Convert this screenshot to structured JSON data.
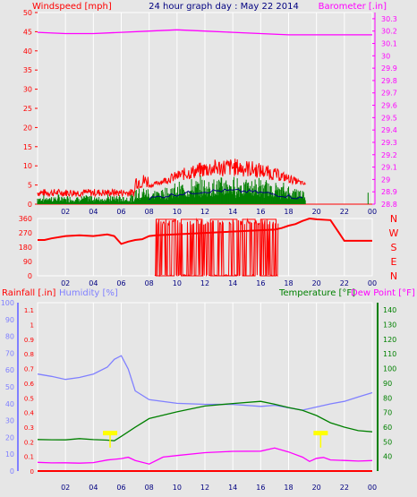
{
  "page": {
    "title": "24 hour graph day : May 22 2014",
    "colors": {
      "background": "#e6e6e6",
      "wind": "#ff0000",
      "wind_avg": "#000080",
      "wind_gust_fill": "#008000",
      "barometer": "#ff00ff",
      "direction": "#ff0000",
      "rainfall": "#ff0000",
      "humidity": "#8080ff",
      "temperature": "#008000",
      "dew_point": "#ff00ff",
      "sunshine_marker": "#ffff00"
    }
  },
  "chart_data": [
    {
      "type": "line",
      "name_top_left": "Windspeed [mph]",
      "name_top_right": "Barometer [.in]",
      "title": "24 hour graph day : May 22 2014",
      "x_ticks": [
        "02",
        "04",
        "06",
        "08",
        "10",
        "12",
        "14",
        "16",
        "18",
        "20",
        "22",
        "00"
      ],
      "y_left": {
        "label": "Windspeed [mph]",
        "ticks": [
          0,
          5,
          10,
          15,
          20,
          25,
          30,
          35,
          40,
          45,
          50
        ],
        "lim": [
          0,
          50
        ]
      },
      "y_right": {
        "label": "Barometer [.in]",
        "ticks": [
          28.8,
          28.9,
          29,
          29.1,
          29.2,
          29.3,
          29.4,
          29.5,
          29.6,
          29.7,
          29.8,
          29.9,
          30,
          30.1,
          30.2,
          30.3
        ],
        "lim": [
          28.8,
          30.35
        ]
      },
      "series": [
        {
          "name": "Barometer",
          "axis": "right",
          "x": [
            0,
            2,
            4,
            6,
            8,
            10,
            12,
            14,
            16,
            18,
            20,
            22,
            24
          ],
          "y": [
            30.19,
            30.18,
            30.18,
            30.19,
            30.2,
            30.21,
            30.2,
            30.19,
            30.18,
            30.17,
            30.17,
            30.17,
            30.17
          ]
        }
      ],
      "wind_activity": {
        "active_from_hour": 0,
        "active_to_hour": 19.2,
        "peak_mph": 12,
        "calm_after_hour": 19.5
      }
    },
    {
      "type": "line",
      "name": "Wind Direction",
      "y_left_ticks": [
        360,
        270,
        180,
        90,
        0
      ],
      "y_right_labels": [
        "N",
        "W",
        "S",
        "E",
        "N"
      ],
      "x_ticks": [
        "02",
        "04",
        "06",
        "08",
        "10",
        "12",
        "14",
        "16",
        "18",
        "20",
        "22",
        "00"
      ],
      "series": [
        {
          "name": "Direction",
          "x": [
            0,
            0.5,
            1,
            2,
            3,
            4,
            5,
            5.5,
            6,
            6.5,
            7,
            7.5,
            8,
            8.5,
            17,
            17.5,
            18,
            18.5,
            19,
            19.5,
            20,
            21,
            22,
            23,
            24
          ],
          "y": [
            225,
            225,
            235,
            250,
            255,
            250,
            260,
            250,
            200,
            215,
            225,
            230,
            250,
            255,
            290,
            300,
            315,
            325,
            345,
            360,
            355,
            350,
            220,
            220,
            220
          ]
        }
      ]
    },
    {
      "type": "line",
      "left_label_1": "Rainfall [.in]",
      "left_label_2": "Humidity [%]",
      "right_label_1": "Temperature [°F]",
      "right_label_2": "Dew Point [°F]",
      "x_ticks": [
        "02",
        "04",
        "06",
        "08",
        "10",
        "12",
        "14",
        "16",
        "18",
        "20",
        "22",
        "00"
      ],
      "y_humidity_ticks": [
        0,
        10,
        20,
        30,
        40,
        50,
        60,
        70,
        80,
        90,
        100
      ],
      "y_rain_ticks": [
        0,
        0.1,
        0.2,
        0.3,
        0.4,
        0.5,
        0.6,
        0.7,
        0.8,
        0.9,
        1,
        1.1
      ],
      "y_temp_ticks": [
        40,
        50,
        60,
        70,
        80,
        90,
        100,
        110,
        120,
        130,
        140
      ],
      "series": [
        {
          "name": "Humidity",
          "axis": "humidity",
          "x": [
            0,
            1,
            2,
            3,
            4,
            5,
            5.5,
            6,
            6.5,
            7,
            8,
            10,
            12,
            14,
            16,
            17,
            18,
            19,
            20,
            21,
            22,
            23,
            24
          ],
          "y": [
            58,
            56,
            55,
            55,
            57,
            62,
            66,
            68,
            60,
            48,
            43,
            40,
            39,
            39,
            39,
            39,
            38,
            36,
            38,
            40,
            42,
            44,
            47
          ]
        },
        {
          "name": "Temperature",
          "axis": "temp",
          "x": [
            0,
            1,
            2,
            3,
            4,
            5,
            5.5,
            6,
            7,
            8,
            10,
            12,
            14,
            16,
            17,
            18,
            19,
            20,
            21,
            22,
            23,
            24
          ],
          "y": [
            51,
            52,
            52,
            52,
            51,
            51,
            50,
            54,
            60,
            66,
            71,
            75,
            76,
            77,
            76,
            74,
            72,
            68,
            63,
            60,
            58,
            57
          ]
        },
        {
          "name": "Dew Point",
          "axis": "temp",
          "x": [
            0,
            1,
            2,
            3,
            4,
            5,
            6,
            6.5,
            7,
            8,
            9,
            10,
            12,
            14,
            16,
            17,
            18,
            19,
            19.5,
            20,
            20.5,
            21,
            22,
            23,
            24
          ],
          "y": [
            36,
            36,
            36,
            35,
            35,
            37,
            38,
            40,
            37,
            35,
            40,
            41,
            42,
            43,
            44,
            45,
            43,
            40,
            37,
            38,
            39,
            38,
            37,
            37,
            37
          ]
        },
        {
          "name": "Rainfall",
          "axis": "rain",
          "x": [
            0,
            24
          ],
          "y": [
            0,
            0
          ]
        }
      ],
      "sunshine_markers_hours": [
        5.2,
        20.3
      ]
    }
  ]
}
